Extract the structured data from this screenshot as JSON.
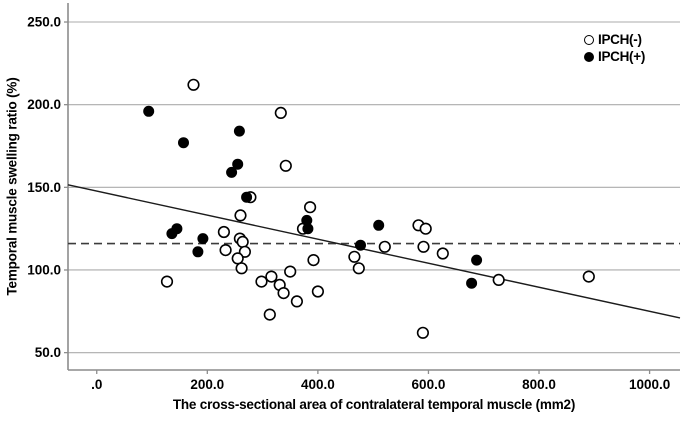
{
  "figure": {
    "background": "#ffffff"
  },
  "chart_data": {
    "type": "scatter",
    "title": "",
    "xlabel": "The cross-sectional area of contralateral temporal muscle (mm2)",
    "ylabel": "Temporal muscle swelling ratio (%)",
    "xlim": [
      -52,
      1055
    ],
    "ylim": [
      39.5,
      261.5
    ],
    "x_ticks": {
      "values": [
        0,
        200,
        400,
        600,
        800,
        1000
      ],
      "labels": [
        ".0",
        "200.0",
        "400.0",
        "600.0",
        "800.0",
        "1000.0"
      ]
    },
    "y_ticks": {
      "values": [
        50,
        100,
        150,
        200,
        250
      ],
      "labels": [
        "50.0",
        "100.0",
        "150.0",
        "200.0",
        "250.0"
      ]
    },
    "grid": "horizontal-gridlines-only",
    "legend": {
      "position": "top-right",
      "entries": [
        {
          "label": "IPCH(-)",
          "marker": "open-circle"
        },
        {
          "label": "IPCH(+)",
          "marker": "filled-circle"
        }
      ]
    },
    "reference_lines": [
      {
        "name": "cutoff-dashed-line",
        "type": "horizontal-dashed",
        "y": 116
      },
      {
        "name": "trend-line",
        "type": "linear-fit",
        "x1": -52,
        "y1": 151.5,
        "x2": 1055,
        "y2": 71
      }
    ],
    "series": [
      {
        "name": "IPCH(-)",
        "marker": "open-circle",
        "points": [
          [
            175,
            212
          ],
          [
            333,
            195
          ],
          [
            342,
            163
          ],
          [
            278,
            144
          ],
          [
            386,
            138
          ],
          [
            373,
            125
          ],
          [
            260,
            133
          ],
          [
            230,
            123
          ],
          [
            259,
            119
          ],
          [
            264,
            117
          ],
          [
            233,
            112
          ],
          [
            268,
            111
          ],
          [
            255,
            107
          ],
          [
            262,
            101
          ],
          [
            127,
            93
          ],
          [
            298,
            93
          ],
          [
            316,
            96
          ],
          [
            331,
            91
          ],
          [
            338,
            86
          ],
          [
            350,
            99
          ],
          [
            362,
            81
          ],
          [
            400,
            87
          ],
          [
            313,
            73
          ],
          [
            392,
            106
          ],
          [
            582,
            127
          ],
          [
            595,
            125
          ],
          [
            591,
            114
          ],
          [
            626,
            110
          ],
          [
            466,
            108
          ],
          [
            474,
            101
          ],
          [
            521,
            114
          ],
          [
            727,
            94
          ],
          [
            890,
            96
          ],
          [
            590,
            62
          ]
        ]
      },
      {
        "name": "IPCH(+)",
        "marker": "filled-circle",
        "points": [
          [
            94,
            196
          ],
          [
            157,
            177
          ],
          [
            258,
            184
          ],
          [
            255,
            164
          ],
          [
            244,
            159
          ],
          [
            271,
            144
          ],
          [
            136,
            122
          ],
          [
            145,
            125
          ],
          [
            192,
            119
          ],
          [
            183,
            111
          ],
          [
            380,
            130
          ],
          [
            382,
            125
          ],
          [
            510,
            127
          ],
          [
            477,
            115
          ],
          [
            687,
            106
          ],
          [
            678,
            92
          ]
        ]
      }
    ],
    "colors": {
      "gridline": "#ababab",
      "axis": "#8c8c8c",
      "trend_line": "#1c1c1c",
      "dashed_line": "#3c3c3c",
      "marker_stroke": "#000000",
      "marker_fill_positive": "#000000",
      "marker_fill_negative": "#ffffff",
      "text": "#000000"
    }
  }
}
